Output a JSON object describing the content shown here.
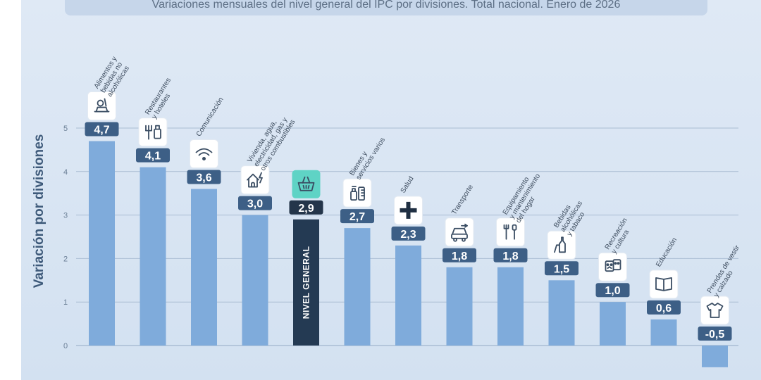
{
  "title": "Variaciones mensuales del nivel general del IPC por divisiones. Total nacional. Enero de 2026",
  "chart_data": {
    "type": "bar",
    "ylabel": "Variación por divisiones",
    "xlabel": "",
    "ylim": [
      -0.5,
      5
    ],
    "yticks": [
      0,
      1,
      2,
      3,
      4,
      5
    ],
    "grid": true,
    "legend": "none",
    "categories": [
      [
        "Alimentos y",
        "bebidas no",
        "alcohólicas"
      ],
      [
        "Restaurantes",
        "y hoteles"
      ],
      [
        "Comunicación"
      ],
      [
        "Vivienda, agua,",
        "electricidad, gas y",
        "otros combustibles"
      ],
      [
        "NIVEL GENERAL"
      ],
      [
        "Bienes y",
        "servicios varios"
      ],
      [
        "Salud"
      ],
      [
        "Transporte"
      ],
      [
        "Equipamiento",
        "y mantenimiento",
        "del hogar"
      ],
      [
        "Bebidas",
        "alcohólicas",
        "y tabaco"
      ],
      [
        "Recreación",
        "y cultura"
      ],
      [
        "Educación"
      ],
      [
        "Prendas de vestir",
        "y calzado"
      ]
    ],
    "values": [
      4.7,
      4.1,
      3.6,
      3.0,
      2.9,
      2.7,
      2.3,
      1.8,
      1.8,
      1.5,
      1.0,
      0.6,
      -0.5
    ],
    "value_labels": [
      "4,7",
      "4,1",
      "3,6",
      "3,0",
      "2,9",
      "2,7",
      "2,3",
      "1,8",
      "1,8",
      "1,5",
      "1,0",
      "0,6",
      "-0,5"
    ],
    "highlight_index": 4,
    "icons": [
      "food-icon",
      "restaurant-icon",
      "wifi-icon",
      "house-energy-icon",
      "basket-icon",
      "personal-care-icon",
      "health-cross-icon",
      "car-icon",
      "tools-icon",
      "bottle-icon",
      "theater-masks-icon",
      "book-icon",
      "tshirt-icon"
    ],
    "colors": {
      "bar": "#7fabdb",
      "highlight_bar": "#243a53",
      "label_box": "#3d5f86",
      "highlight_label_box": "#24354a",
      "highlight_icon_bg": "#5fd3c5",
      "grid": "#aabdd3"
    }
  }
}
